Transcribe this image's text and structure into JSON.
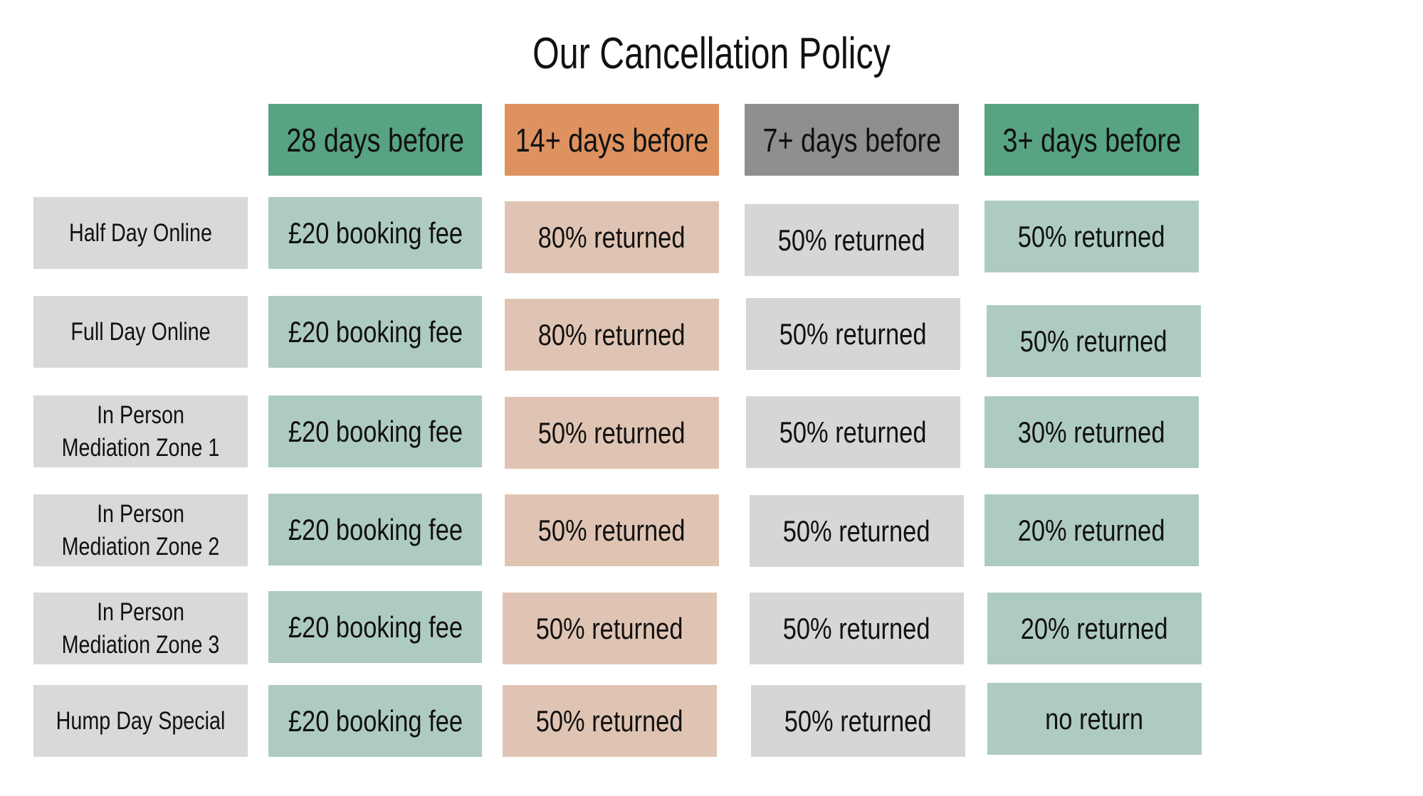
{
  "title": "Our Cancellation Policy",
  "columns": [
    {
      "label": "28 days before",
      "color": "#57a382",
      "cell_color": "#aecbbf"
    },
    {
      "label": "14+ days before",
      "color": "#dd9260",
      "cell_color": "#e0c4b3"
    },
    {
      "label": "7+ days before",
      "color": "#8f8f8f",
      "cell_color": "#d6d6d6"
    },
    {
      "label": "3+ days before",
      "color": "#57a382",
      "cell_color": "#aecbbf"
    }
  ],
  "rows": [
    {
      "label": "Half Day Online",
      "values": [
        "£20 booking fee",
        "80% returned",
        "50% returned",
        "50% returned"
      ]
    },
    {
      "label": "Full Day Online",
      "values": [
        "£20 booking fee",
        "80% returned",
        "50% returned",
        "50% returned"
      ]
    },
    {
      "label": "In Person Mediation Zone 1",
      "values": [
        "£20 booking fee",
        "50% returned",
        "50% returned",
        "30% returned"
      ]
    },
    {
      "label": "In Person Mediation Zone 2",
      "values": [
        "£20 booking fee",
        "50% returned",
        "50% returned",
        "20% returned"
      ]
    },
    {
      "label": "In Person Mediation Zone 3",
      "values": [
        "£20 booking fee",
        "50% returned",
        "50% returned",
        "20% returned"
      ]
    },
    {
      "label": "Hump Day Special",
      "values": [
        "£20 booking fee",
        "50% returned",
        "50% returned",
        "no return"
      ]
    }
  ]
}
